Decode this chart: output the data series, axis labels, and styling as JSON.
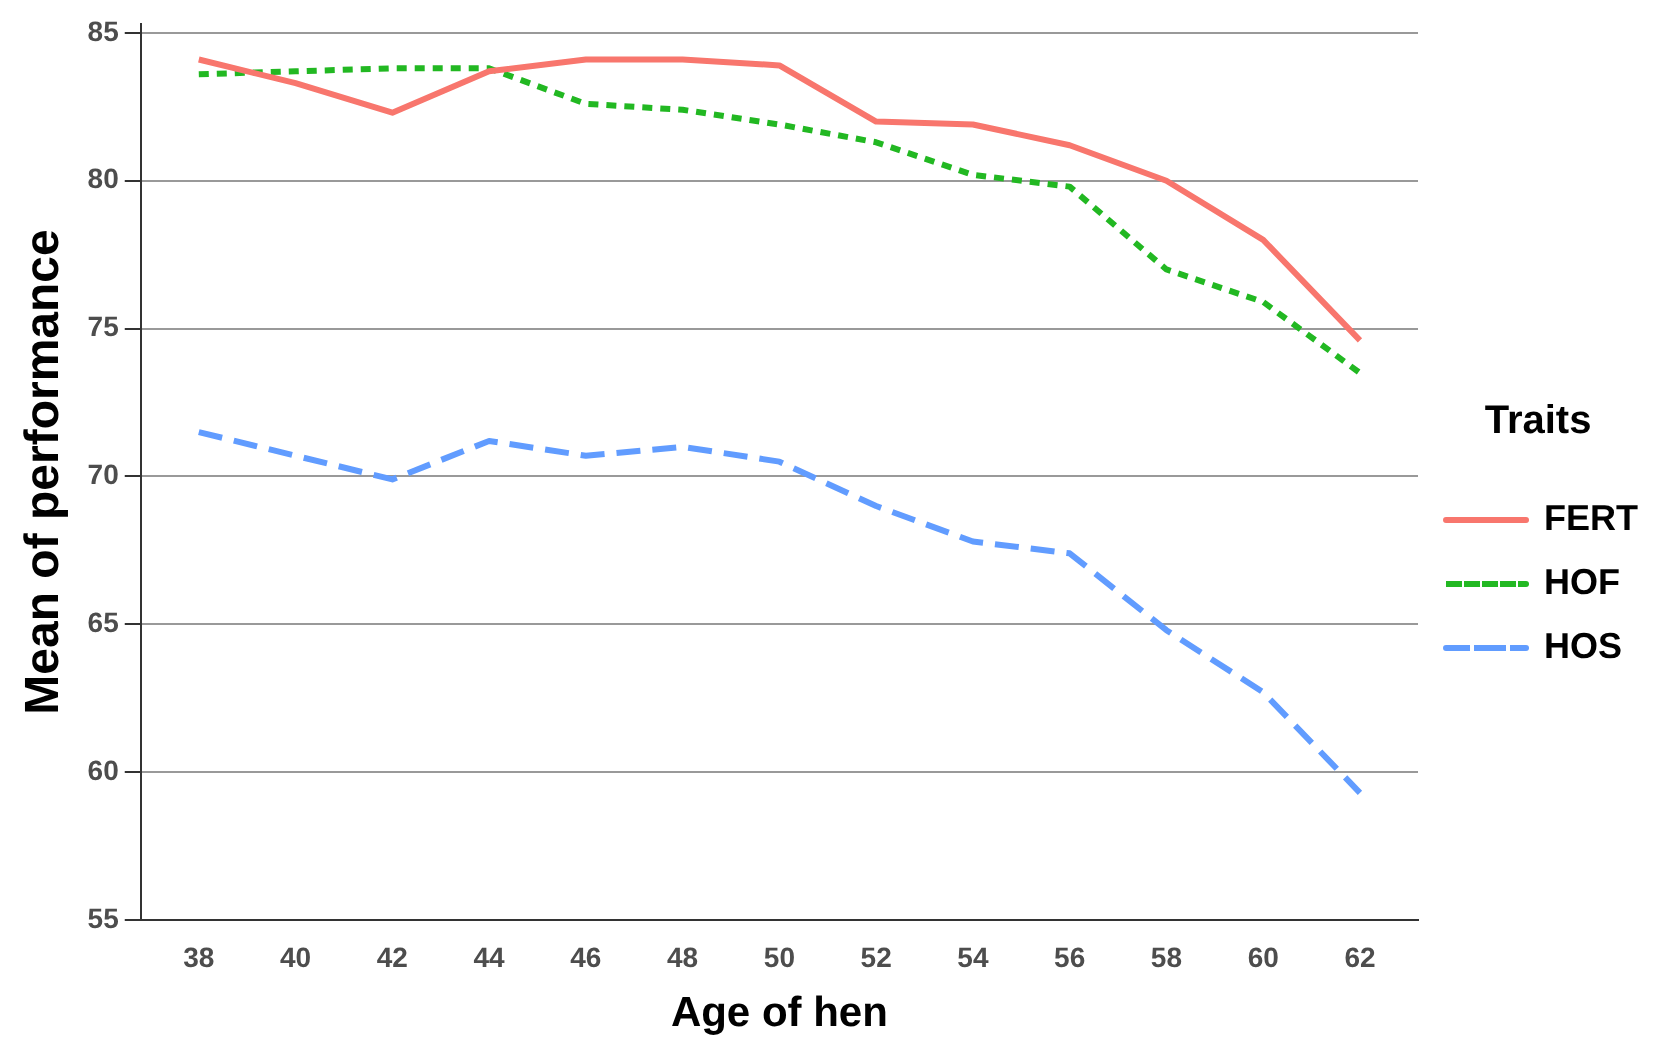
{
  "chart_data": {
    "type": "line",
    "xlabel": "Age of hen",
    "ylabel": "Mean of performance",
    "legend_title": "Traits",
    "x": [
      38,
      40,
      42,
      44,
      46,
      48,
      50,
      52,
      54,
      56,
      58,
      60,
      62
    ],
    "series": [
      {
        "name": "FERT",
        "color": "#f8766d",
        "line_style": "solid",
        "values": [
          84.1,
          83.3,
          82.3,
          83.7,
          84.1,
          84.1,
          83.9,
          82.0,
          81.9,
          81.2,
          80.0,
          78.0,
          74.6
        ]
      },
      {
        "name": "HOF",
        "color": "#22b822",
        "line_style": "dotted",
        "values": [
          83.6,
          83.7,
          83.8,
          83.8,
          82.6,
          82.4,
          81.9,
          81.3,
          80.2,
          79.8,
          77.0,
          75.9,
          73.5
        ]
      },
      {
        "name": "HOS",
        "color": "#619cff",
        "line_style": "dashed",
        "values": [
          71.5,
          70.7,
          69.9,
          71.2,
          70.7,
          71.0,
          70.5,
          69.0,
          67.8,
          67.4,
          64.8,
          62.7,
          59.3
        ]
      }
    ],
    "xlim": [
      36.8,
      63.2
    ],
    "xticks": [
      38,
      40,
      42,
      44,
      46,
      48,
      50,
      52,
      54,
      56,
      58,
      60,
      62
    ],
    "ylim": [
      55,
      85.3
    ],
    "yticks": [
      55,
      60,
      65,
      70,
      75,
      80,
      85
    ],
    "grid": "y",
    "legend": "right",
    "marker": "none"
  }
}
